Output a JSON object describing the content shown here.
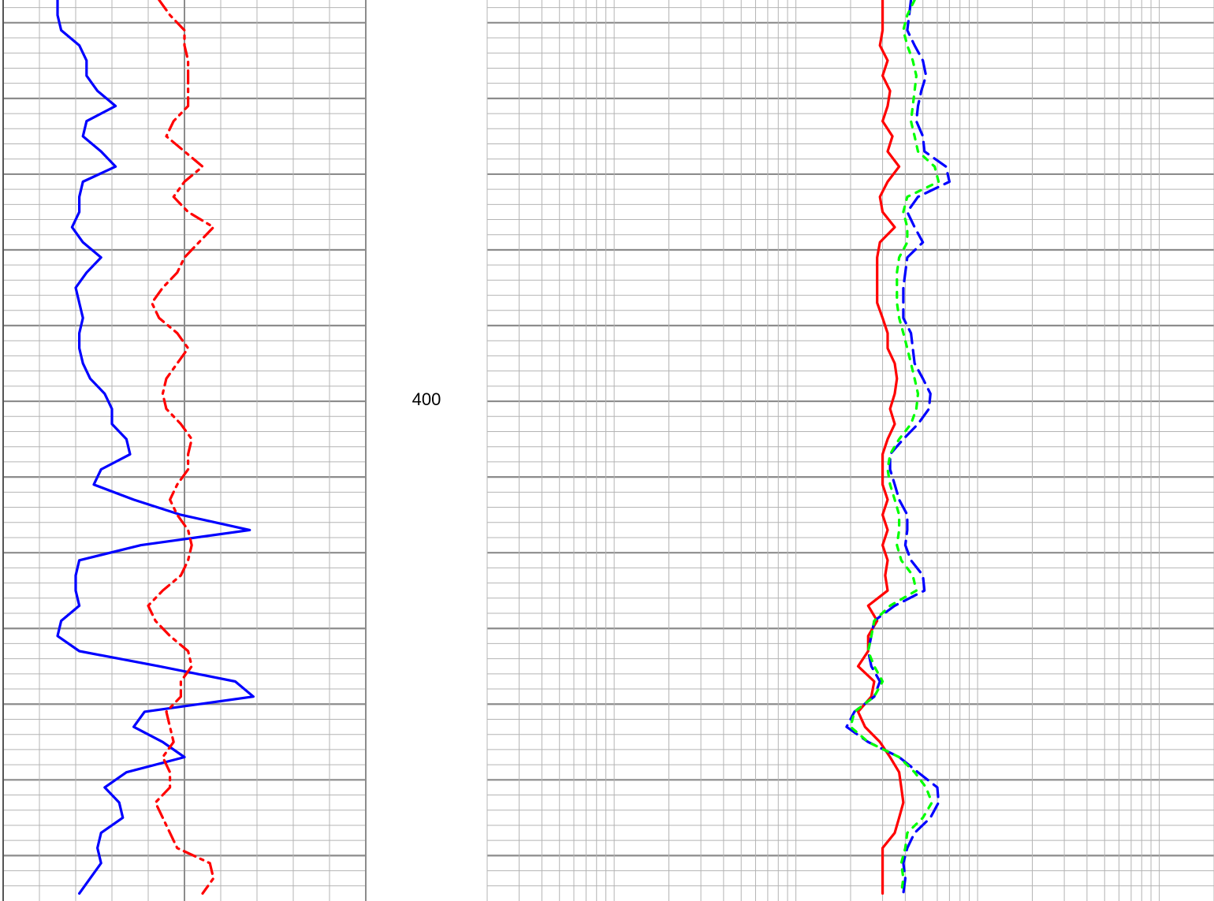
{
  "chart_data": {
    "type": "line",
    "orientation": "vertical",
    "depth": [
      347,
      349,
      351,
      353,
      355,
      357,
      359,
      361,
      363,
      365,
      367,
      369,
      371,
      373,
      375,
      377,
      379,
      381,
      383,
      385,
      387,
      389,
      391,
      393,
      395,
      397,
      399,
      401,
      403,
      405,
      407,
      409,
      411,
      413,
      415,
      417,
      419,
      421,
      423,
      425,
      427,
      429,
      431,
      433,
      435,
      437,
      439,
      441,
      443,
      445,
      447,
      449,
      451,
      453,
      455,
      457,
      459,
      461,
      463,
      465
    ],
    "depth_lim": [
      347,
      466
    ],
    "depth_ticks": [
      400
    ],
    "depth_grid_major": [
      350,
      360,
      370,
      380,
      390,
      400,
      410,
      420,
      430,
      440,
      450,
      460
    ],
    "depth_grid_minor": [
      348,
      352,
      354,
      356,
      358,
      362,
      364,
      366,
      368,
      372,
      374,
      376,
      378,
      382,
      384,
      386,
      388,
      392,
      394,
      396,
      398,
      402,
      404,
      406,
      408,
      412,
      414,
      416,
      418,
      422,
      424,
      426,
      428,
      432,
      434,
      436,
      438,
      442,
      444,
      446,
      448,
      452,
      454,
      456,
      458,
      462,
      464
    ],
    "tracks": [
      {
        "scale": "linear",
        "xlim": [
          0,
          100
        ],
        "xticks": [
          0,
          10,
          20,
          30,
          40,
          50,
          60,
          70,
          80,
          90,
          100
        ],
        "xticks_major": [
          0,
          50,
          100
        ],
        "series": [
          {
            "color": "#0000ff",
            "style": "solid",
            "values": [
              15,
              15,
              16,
              21,
              23,
              23,
              26,
              31,
              23,
              22,
              27,
              31,
              22,
              21,
              21,
              19,
              22,
              27,
              23,
              20,
              21,
              22,
              21,
              21,
              22,
              24,
              28,
              30,
              30,
              34,
              35,
              27,
              25,
              36,
              49,
              68,
              38,
              21,
              20,
              20,
              21,
              16,
              15,
              21,
              43,
              64,
              69,
              39,
              36,
              44,
              50,
              34,
              28,
              32,
              33,
              27,
              26,
              27,
              24,
              21
            ]
          },
          {
            "color": "#ff0000",
            "style": "dashdot",
            "values": [
              43,
              46,
              50,
              50,
              51,
              51,
              51,
              51,
              47,
              45,
              50,
              55,
              50,
              47,
              51,
              58,
              54,
              50,
              48,
              44,
              41,
              43,
              48,
              51,
              48,
              45,
              44,
              45,
              49,
              52,
              51,
              51,
              48,
              46,
              48,
              51,
              52,
              51,
              49,
              44,
              40,
              42,
              46,
              51,
              52,
              49,
              49,
              45,
              46,
              47,
              44,
              46,
              46,
              42,
              44,
              46,
              48,
              57,
              58,
              55
            ]
          }
        ]
      },
      {
        "scale": "log",
        "xlim": [
          0.2,
          2000
        ],
        "xticks": [
          0.2,
          0.3,
          0.4,
          0.5,
          0.6,
          0.7,
          0.8,
          0.9,
          1,
          2,
          3,
          4,
          5,
          6,
          7,
          8,
          9,
          10,
          20,
          30,
          40,
          50,
          60,
          70,
          80,
          90,
          100,
          200,
          300,
          400,
          500,
          600,
          700,
          800,
          900,
          1000,
          2000
        ],
        "series": [
          {
            "color": "#ff0000",
            "style": "solid",
            "values": [
              30,
              30,
              30,
              29,
              32,
              30,
              33,
              32,
              30,
              34,
              32,
              37,
              32,
              29,
              30,
              35,
              29,
              28,
              28,
              28,
              28,
              30,
              32,
              32,
              35,
              36,
              35,
              33,
              35,
              32,
              30,
              30,
              30,
              32,
              30,
              32,
              30,
              32,
              31,
              32,
              25,
              28,
              25,
              25,
              22,
              27,
              26,
              22,
              24,
              29,
              33,
              37,
              38,
              39,
              37,
              35,
              30,
              30,
              30,
              30
            ]
          },
          {
            "color": "#0000ff",
            "style": "dash",
            "values": [
              43,
              42,
              41,
              45,
              50,
              52,
              49,
              47,
              46,
              50,
              51,
              67,
              70,
              47,
              41,
              45,
              50,
              41,
              40,
              39,
              39,
              39,
              43,
              44,
              45,
              50,
              55,
              54,
              47,
              39,
              33,
              33,
              35,
              37,
              41,
              41,
              40,
              43,
              50,
              51,
              35,
              27,
              26,
              25,
              26,
              29,
              27,
              21,
              19,
              25,
              37,
              47,
              60,
              61,
              55,
              45,
              41,
              39,
              40,
              39
            ]
          },
          {
            "color": "#00ff00",
            "style": "dot",
            "values": [
              45,
              41,
              39,
              41,
              44,
              46,
              45,
              44,
              43,
              45,
              47,
              58,
              61,
              41,
              39,
              41,
              41,
              37,
              36,
              36,
              36,
              37,
              39,
              41,
              43,
              45,
              47,
              46,
              43,
              37,
              33,
              32,
              33,
              35,
              37,
              37,
              36,
              38,
              44,
              46,
              33,
              27,
              26,
              25,
              27,
              30,
              27,
              21,
              20,
              25,
              37,
              45,
              52,
              56,
              50,
              41,
              40,
              38,
              39,
              38
            ]
          }
        ]
      }
    ]
  }
}
